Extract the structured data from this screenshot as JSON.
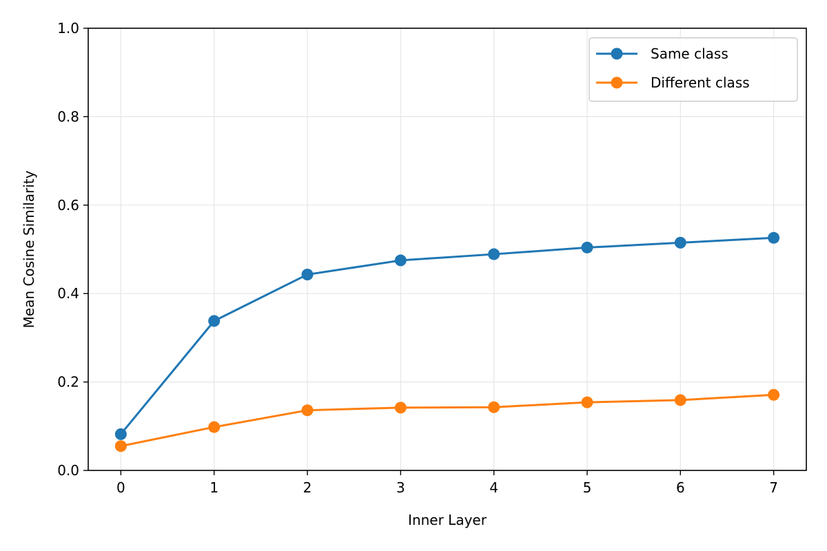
{
  "chart_data": {
    "type": "line",
    "xlabel": "Inner Layer",
    "ylabel": "Mean Cosine Similarity",
    "x": [
      0,
      1,
      2,
      3,
      4,
      5,
      6,
      7
    ],
    "xticks": [
      "0",
      "1",
      "2",
      "3",
      "4",
      "5",
      "6",
      "7"
    ],
    "yticks": [
      "0.0",
      "0.2",
      "0.4",
      "0.6",
      "0.8",
      "1.0"
    ],
    "xlim": [
      -0.35,
      7.35
    ],
    "ylim": [
      0,
      1.0
    ],
    "grid": true,
    "legend_position": "top-right",
    "series": [
      {
        "name": "Same class",
        "color": "#1f77b4",
        "values": [
          0.082,
          0.338,
          0.443,
          0.475,
          0.489,
          0.504,
          0.515,
          0.526
        ]
      },
      {
        "name": "Different class",
        "color": "#ff7f0e",
        "values": [
          0.055,
          0.098,
          0.136,
          0.142,
          0.143,
          0.154,
          0.159,
          0.171
        ]
      }
    ]
  }
}
